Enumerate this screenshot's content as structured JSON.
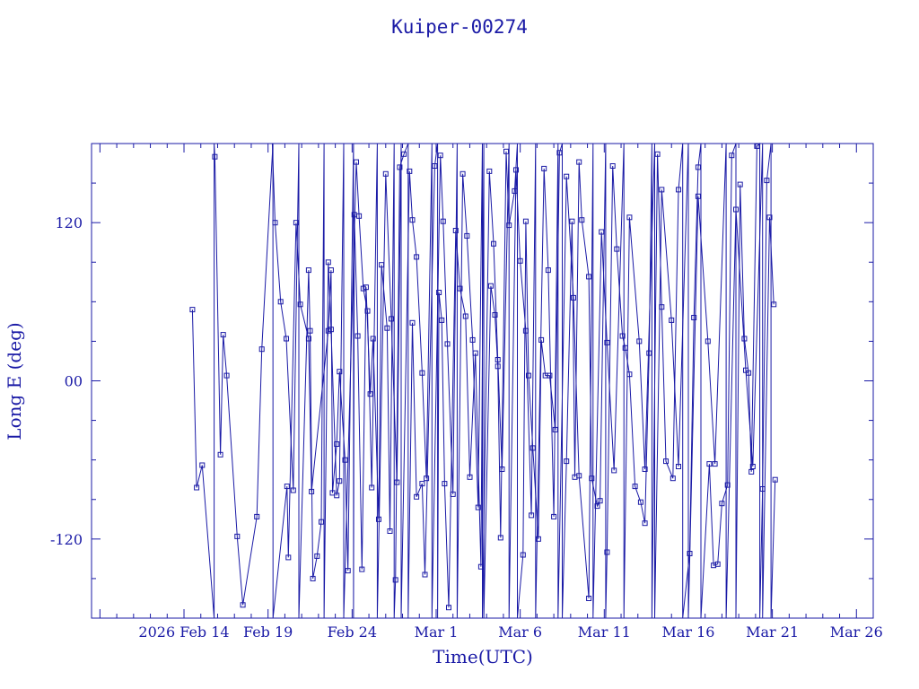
{
  "chart_data": {
    "type": "line",
    "title": "Kuiper-00274",
    "xlabel": "Time(UTC)",
    "ylabel": "Long E (deg)",
    "xlim": [
      "2026-02-08T12:00",
      "2026-03-27T00:00"
    ],
    "ylim": [
      -180,
      180
    ],
    "grid": false,
    "x_ticks": [
      "2026 Feb 14",
      "Feb 19",
      "Feb 24",
      "Mar 1",
      "Mar 6",
      "Mar 11",
      "Mar 16",
      "Mar 21",
      "Mar 26"
    ],
    "y_ticks": [
      "-120",
      "00",
      "120"
    ],
    "series": [
      {
        "marker": "square",
        "color": "#1a1aa6",
        "points": [
          [
            "2026-02-14T12:00",
            54
          ],
          [
            "2026-02-14T18:00",
            -81
          ],
          [
            "2026-02-15T02:00",
            -64
          ],
          [
            "2026-02-15T19:00",
            -180
          ],
          [
            "2026-02-15T19:01",
            180
          ],
          [
            "2026-02-15T20:00",
            170
          ],
          [
            "2026-02-16T04:00",
            -56
          ],
          [
            "2026-02-16T08:00",
            35
          ],
          [
            "2026-02-16T13:00",
            4
          ],
          [
            "2026-02-17T04:00",
            -118
          ],
          [
            "2026-02-17T12:00",
            -170
          ],
          [
            "2026-02-18T08:00",
            -103
          ],
          [
            "2026-02-18T15:00",
            24
          ],
          [
            "2026-02-19T07:00",
            180
          ],
          [
            "2026-02-19T07:01",
            -180
          ],
          [
            "2026-02-20T03:00",
            -80
          ],
          [
            "2026-02-20T05:00",
            -134
          ],
          [
            "2026-02-20T16:00",
            120
          ],
          [
            "2026-02-20T22:00",
            58
          ],
          [
            "2026-02-21T10:00",
            32
          ],
          [
            "2026-02-21T14:00",
            -84
          ],
          [
            "2026-02-22T14:00",
            38
          ],
          [
            "2026-02-22T18:00",
            84
          ],
          [
            "2026-02-22T20:00",
            -85
          ],
          [
            "2026-02-23T02:00",
            -48
          ],
          [
            "2026-02-23T06:00",
            7
          ],
          [
            "2026-02-23T14:00",
            -60
          ],
          [
            "2026-02-23T18:00",
            -144
          ],
          [
            "2026-02-24T02:00",
            180
          ],
          [
            "2026-02-24T02:01",
            -180
          ],
          [
            "2026-02-24T03:00",
            126
          ],
          [
            "2026-02-24T08:00",
            34
          ],
          [
            "2026-02-24T14:00",
            -143
          ],
          [
            "2026-02-24T20:00",
            71
          ],
          [
            "2026-02-25T02:00",
            -10
          ],
          [
            "2026-02-25T06:00",
            32
          ],
          [
            "2026-02-25T14:00",
            -105
          ],
          [
            "2026-02-25T18:00",
            88
          ],
          [
            "2026-02-26T02:00",
            40
          ],
          [
            "2026-02-26T06:00",
            -114
          ],
          [
            "2026-02-26T12:00",
            180
          ],
          [
            "2026-02-26T12:01",
            -180
          ],
          [
            "2026-02-26T14:00",
            -151
          ],
          [
            "2026-02-26T20:00",
            162
          ],
          [
            "2026-02-27T02:00",
            172
          ],
          [
            "2026-02-27T08:00",
            180
          ],
          [
            "2026-02-27T08:01",
            -180
          ],
          [
            "2026-02-27T14:00",
            44
          ],
          [
            "2026-02-27T20:00",
            -88
          ],
          [
            "2026-02-28T04:00",
            -78
          ],
          [
            "2026-02-28T08:00",
            -147
          ],
          [
            "2026-02-28T22:00",
            163
          ],
          [
            "2026-03-01T02:00",
            180
          ],
          [
            "2026-03-01T02:01",
            -180
          ],
          [
            "2026-03-01T04:00",
            67
          ],
          [
            "2026-03-01T08:00",
            46
          ],
          [
            "2026-03-01T12:00",
            -78
          ],
          [
            "2026-03-01T18:00",
            -172
          ],
          [
            "2026-03-02T04:00",
            114
          ],
          [
            "2026-03-02T10:00",
            70
          ],
          [
            "2026-03-02T18:00",
            49
          ],
          [
            "2026-03-03T00:00",
            -73
          ],
          [
            "2026-03-03T08:00",
            21
          ],
          [
            "2026-03-03T16:00",
            -141
          ],
          [
            "2026-03-03T20:00",
            180
          ],
          [
            "2026-03-03T20:01",
            -180
          ],
          [
            "2026-03-04T06:00",
            72
          ],
          [
            "2026-03-04T12:00",
            50
          ],
          [
            "2026-03-04T16:00",
            11
          ],
          [
            "2026-03-04T20:00",
            -119
          ],
          [
            "2026-03-05T04:00",
            174
          ],
          [
            "2026-03-05T08:00",
            118
          ],
          [
            "2026-03-05T16:00",
            144
          ],
          [
            "2026-03-05T20:00",
            180
          ],
          [
            "2026-03-05T20:01",
            -180
          ],
          [
            "2026-03-06T04:00",
            -132
          ],
          [
            "2026-03-06T08:00",
            121
          ],
          [
            "2026-03-06T12:00",
            4
          ],
          [
            "2026-03-06T18:00",
            -51
          ],
          [
            "2026-03-07T02:00",
            -120
          ],
          [
            "2026-03-07T06:00",
            31
          ],
          [
            "2026-03-07T12:00",
            4
          ],
          [
            "2026-03-07T18:00",
            4
          ],
          [
            "2026-03-08T02:00",
            -37
          ],
          [
            "2026-03-08T08:00",
            173
          ],
          [
            "2026-03-08T12:00",
            180
          ],
          [
            "2026-03-08T12:01",
            -180
          ],
          [
            "2026-03-08T18:00",
            -61
          ],
          [
            "2026-03-09T02:00",
            121
          ],
          [
            "2026-03-09T06:00",
            -73
          ],
          [
            "2026-03-09T12:00",
            166
          ],
          [
            "2026-03-09T16:00",
            122
          ],
          [
            "2026-03-10T02:00",
            79
          ],
          [
            "2026-03-10T06:00",
            -74
          ],
          [
            "2026-03-10T14:00",
            -95
          ],
          [
            "2026-03-10T18:00",
            -91
          ],
          [
            "2026-03-11T02:00",
            180
          ],
          [
            "2026-03-11T02:01",
            -180
          ],
          [
            "2026-03-11T04:00",
            -130
          ],
          [
            "2026-03-11T12:00",
            163
          ],
          [
            "2026-03-11T18:00",
            100
          ],
          [
            "2026-03-12T02:00",
            34
          ],
          [
            "2026-03-12T06:00",
            25
          ],
          [
            "2026-03-12T12:00",
            5
          ],
          [
            "2026-03-12T20:00",
            -80
          ],
          [
            "2026-03-13T04:00",
            -92
          ],
          [
            "2026-03-13T10:00",
            -108
          ],
          [
            "2026-03-13T16:00",
            21
          ],
          [
            "2026-03-13T20:00",
            180
          ],
          [
            "2026-03-13T20:01",
            -180
          ],
          [
            "2026-03-14T04:00",
            172
          ],
          [
            "2026-03-14T10:00",
            56
          ],
          [
            "2026-03-14T16:00",
            -61
          ],
          [
            "2026-03-15T02:00",
            -74
          ],
          [
            "2026-03-15T10:00",
            145
          ],
          [
            "2026-03-15T16:00",
            180
          ],
          [
            "2026-03-15T16:01",
            -180
          ],
          [
            "2026-03-16T02:00",
            -131
          ],
          [
            "2026-03-16T08:00",
            48
          ],
          [
            "2026-03-16T14:00",
            162
          ],
          [
            "2026-03-16T18:00",
            180
          ],
          [
            "2026-03-16T18:01",
            -180
          ],
          [
            "2026-03-17T06:00",
            -63
          ],
          [
            "2026-03-17T12:00",
            -140
          ],
          [
            "2026-03-17T18:00",
            -139
          ],
          [
            "2026-03-18T00:00",
            -93
          ],
          [
            "2026-03-18T08:00",
            -79
          ],
          [
            "2026-03-18T14:00",
            171
          ],
          [
            "2026-03-18T20:00",
            180
          ],
          [
            "2026-03-18T20:01",
            -180
          ],
          [
            "2026-03-19T02:00",
            149
          ],
          [
            "2026-03-19T08:00",
            32
          ],
          [
            "2026-03-19T14:00",
            6
          ],
          [
            "2026-03-19T18:00",
            -69
          ],
          [
            "2026-03-20T02:00",
            178
          ],
          [
            "2026-03-20T06:00",
            180
          ],
          [
            "2026-03-20T06:01",
            -180
          ],
          [
            "2026-03-20T10:00",
            -82
          ],
          [
            "2026-03-20T16:00",
            152
          ],
          [
            "2026-03-20T22:00",
            180
          ],
          [
            "2026-03-20T22:01",
            -180
          ],
          [
            "2026-03-21T04:00",
            -75
          ]
        ]
      },
      {
        "marker": "square",
        "color": "#1a1aa6",
        "points": [
          [
            "2026-02-19T06:00",
            180
          ],
          [
            "2026-02-19T10:00",
            120
          ],
          [
            "2026-02-19T18:00",
            60
          ],
          [
            "2026-02-20T02:00",
            32
          ],
          [
            "2026-02-20T12:00",
            -83
          ],
          [
            "2026-02-20T20:00",
            180
          ],
          [
            "2026-02-20T20:01",
            -180
          ],
          [
            "2026-02-21T10:00",
            84
          ],
          [
            "2026-02-21T12:00",
            38
          ],
          [
            "2026-02-21T16:00",
            -150
          ],
          [
            "2026-02-21T22:00",
            -133
          ],
          [
            "2026-02-22T04:00",
            -107
          ],
          [
            "2026-02-22T08:00",
            180
          ],
          [
            "2026-02-22T08:01",
            -180
          ],
          [
            "2026-02-22T14:00",
            90
          ],
          [
            "2026-02-22T18:00",
            39
          ],
          [
            "2026-02-23T02:00",
            -87
          ],
          [
            "2026-02-23T06:00",
            -76
          ],
          [
            "2026-02-23T12:00",
            180
          ],
          [
            "2026-02-23T12:01",
            -180
          ],
          [
            "2026-02-24T06:00",
            166
          ],
          [
            "2026-02-24T10:00",
            125
          ],
          [
            "2026-02-24T16:00",
            70
          ],
          [
            "2026-02-24T22:00",
            53
          ],
          [
            "2026-02-25T04:00",
            -81
          ],
          [
            "2026-02-25T12:00",
            180
          ],
          [
            "2026-02-25T12:01",
            -180
          ],
          [
            "2026-02-26T00:00",
            157
          ],
          [
            "2026-02-26T08:00",
            47
          ],
          [
            "2026-02-26T16:00",
            -77
          ],
          [
            "2026-02-26T22:00",
            180
          ],
          [
            "2026-02-26T22:01",
            -180
          ],
          [
            "2026-02-27T10:00",
            159
          ],
          [
            "2026-02-27T14:00",
            122
          ],
          [
            "2026-02-27T20:00",
            94
          ],
          [
            "2026-02-28T04:00",
            6
          ],
          [
            "2026-02-28T10:00",
            -74
          ],
          [
            "2026-02-28T18:00",
            180
          ],
          [
            "2026-02-28T18:01",
            -180
          ],
          [
            "2026-03-01T06:00",
            171
          ],
          [
            "2026-03-01T10:00",
            121
          ],
          [
            "2026-03-01T16:00",
            28
          ],
          [
            "2026-03-02T00:00",
            -86
          ],
          [
            "2026-03-02T06:00",
            180
          ],
          [
            "2026-03-02T06:01",
            -180
          ],
          [
            "2026-03-02T14:00",
            157
          ],
          [
            "2026-03-02T20:00",
            110
          ],
          [
            "2026-03-03T04:00",
            31
          ],
          [
            "2026-03-03T12:00",
            -96
          ],
          [
            "2026-03-03T18:00",
            180
          ],
          [
            "2026-03-03T18:01",
            -180
          ],
          [
            "2026-03-04T04:00",
            159
          ],
          [
            "2026-03-04T10:00",
            104
          ],
          [
            "2026-03-04T16:00",
            16
          ],
          [
            "2026-03-04T22:00",
            -67
          ],
          [
            "2026-03-05T08:00",
            180
          ],
          [
            "2026-03-05T08:01",
            -180
          ],
          [
            "2026-03-05T18:00",
            160
          ],
          [
            "2026-03-06T00:00",
            91
          ],
          [
            "2026-03-06T08:00",
            38
          ],
          [
            "2026-03-06T16:00",
            -102
          ],
          [
            "2026-03-06T22:00",
            180
          ],
          [
            "2026-03-06T22:01",
            -180
          ],
          [
            "2026-03-07T10:00",
            161
          ],
          [
            "2026-03-07T16:00",
            84
          ],
          [
            "2026-03-08T00:00",
            -103
          ],
          [
            "2026-03-08T06:00",
            180
          ],
          [
            "2026-03-08T06:01",
            -180
          ],
          [
            "2026-03-08T18:00",
            155
          ],
          [
            "2026-03-09T04:00",
            63
          ],
          [
            "2026-03-09T12:00",
            -72
          ],
          [
            "2026-03-10T02:00",
            -165
          ],
          [
            "2026-03-10T08:00",
            180
          ],
          [
            "2026-03-10T08:01",
            -180
          ],
          [
            "2026-03-10T20:00",
            113
          ],
          [
            "2026-03-11T04:00",
            29
          ],
          [
            "2026-03-11T14:00",
            -68
          ],
          [
            "2026-03-12T04:00",
            180
          ],
          [
            "2026-03-12T04:01",
            -180
          ],
          [
            "2026-03-12T12:00",
            124
          ],
          [
            "2026-03-13T02:00",
            30
          ],
          [
            "2026-03-13T10:00",
            -67
          ],
          [
            "2026-03-14T00:00",
            180
          ],
          [
            "2026-03-14T00:01",
            -180
          ],
          [
            "2026-03-14T10:00",
            145
          ],
          [
            "2026-03-15T00:00",
            46
          ],
          [
            "2026-03-15T10:00",
            -65
          ],
          [
            "2026-03-16T00:00",
            180
          ],
          [
            "2026-03-16T00:01",
            -180
          ],
          [
            "2026-03-16T14:00",
            140
          ],
          [
            "2026-03-17T04:00",
            30
          ],
          [
            "2026-03-17T14:00",
            -63
          ],
          [
            "2026-03-18T06:00",
            180
          ],
          [
            "2026-03-18T06:01",
            -180
          ],
          [
            "2026-03-18T20:00",
            130
          ],
          [
            "2026-03-19T10:00",
            8
          ],
          [
            "2026-03-19T20:00",
            -65
          ],
          [
            "2026-03-20T10:00",
            180
          ],
          [
            "2026-03-20T10:01",
            -180
          ],
          [
            "2026-03-20T20:00",
            124
          ],
          [
            "2026-03-21T02:00",
            58
          ]
        ]
      }
    ]
  }
}
